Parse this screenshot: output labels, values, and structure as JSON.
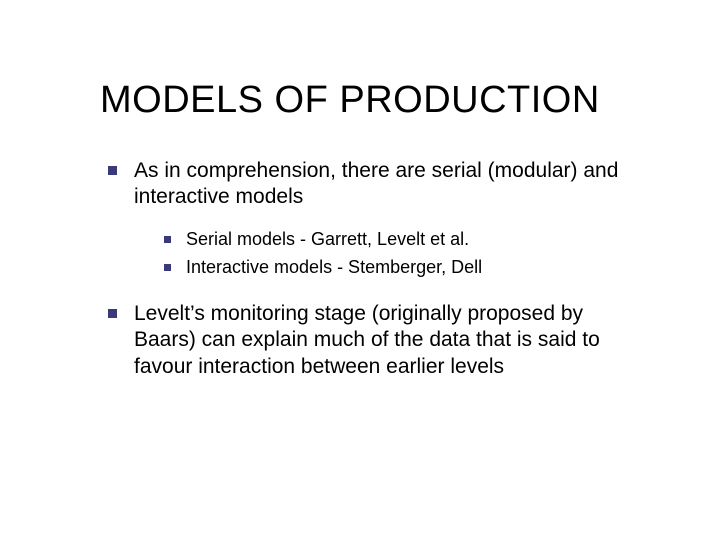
{
  "slide": {
    "title": "MODELS OF PRODUCTION",
    "title_fontsize": 38,
    "body_fontsize_lvl1": 21,
    "body_fontsize_lvl2": 18,
    "bullet_color": "#3a3a7a",
    "text_color": "#000000",
    "background_color": "#ffffff",
    "items": [
      {
        "text": "As in comprehension, there are serial (modular) and interactive models",
        "children": [
          {
            "text": "Serial models - Garrett, Levelt et al."
          },
          {
            "text": "Interactive models - Stemberger, Dell"
          }
        ]
      },
      {
        "text": "Levelt’s monitoring stage (originally proposed by Baars) can explain much of the data that is said to favour interaction between earlier levels",
        "children": []
      }
    ]
  }
}
